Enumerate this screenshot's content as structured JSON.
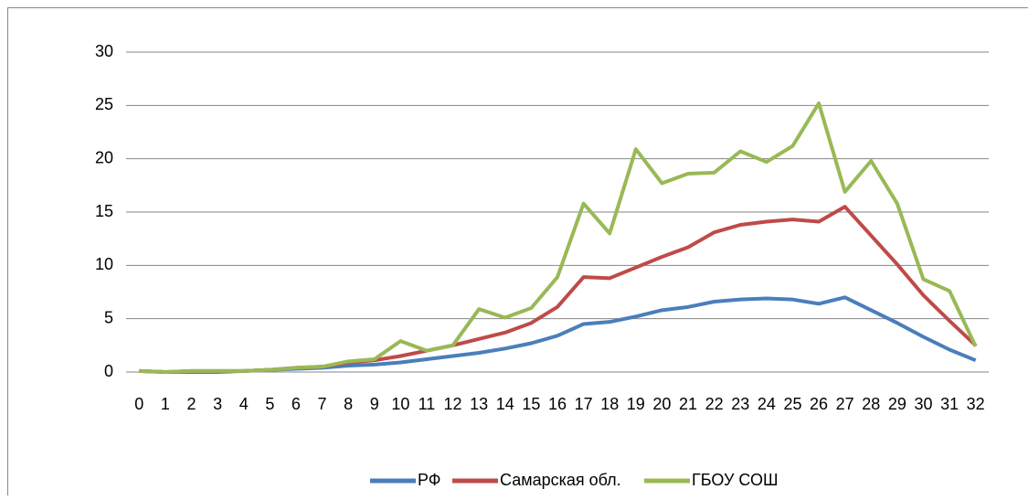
{
  "chart_data": {
    "type": "line",
    "categories": [
      "0",
      "1",
      "2",
      "3",
      "4",
      "5",
      "6",
      "7",
      "8",
      "9",
      "10",
      "11",
      "12",
      "13",
      "14",
      "15",
      "16",
      "17",
      "18",
      "19",
      "20",
      "21",
      "22",
      "23",
      "24",
      "25",
      "26",
      "27",
      "28",
      "29",
      "30",
      "31",
      "32"
    ],
    "series": [
      {
        "name": "РФ",
        "color": "#4a7ebb",
        "values": [
          0.1,
          0,
          0,
          0,
          0.1,
          0.2,
          0.3,
          0.4,
          0.6,
          0.7,
          0.9,
          1.2,
          1.5,
          1.8,
          2.2,
          2.7,
          3.4,
          4.5,
          4.7,
          5.2,
          5.8,
          6.1,
          6.6,
          6.8,
          6.9,
          6.8,
          6.4,
          7.0,
          5.8,
          4.6,
          3.3,
          2.1,
          1.1
        ]
      },
      {
        "name": "Самарская обл.",
        "color": "#be4b48",
        "values": [
          0.1,
          0,
          0.1,
          0.1,
          0.1,
          0.2,
          0.4,
          0.5,
          0.9,
          1.1,
          1.5,
          2.0,
          2.5,
          3.1,
          3.7,
          4.6,
          6.1,
          8.9,
          8.8,
          9.8,
          10.8,
          11.7,
          13.1,
          13.8,
          14.1,
          14.3,
          14.1,
          15.5,
          12.8,
          10.1,
          7.2,
          4.8,
          2.5
        ]
      },
      {
        "name": "ГБОУ СОШ",
        "color": "#98b954",
        "values": [
          0.1,
          0,
          0.1,
          0.1,
          0.1,
          0.2,
          0.4,
          0.5,
          1.0,
          1.2,
          2.9,
          2.0,
          2.5,
          5.9,
          5.1,
          6.0,
          8.9,
          15.8,
          13.0,
          20.9,
          17.7,
          18.6,
          18.7,
          20.7,
          19.7,
          21.2,
          25.2,
          16.9,
          19.8,
          15.8,
          8.7,
          7.6,
          2.4
        ]
      }
    ],
    "ylim": [
      0,
      30
    ],
    "yticks": [
      0,
      5,
      10,
      15,
      20,
      25,
      30
    ],
    "grid": true,
    "legend": "bottom"
  }
}
